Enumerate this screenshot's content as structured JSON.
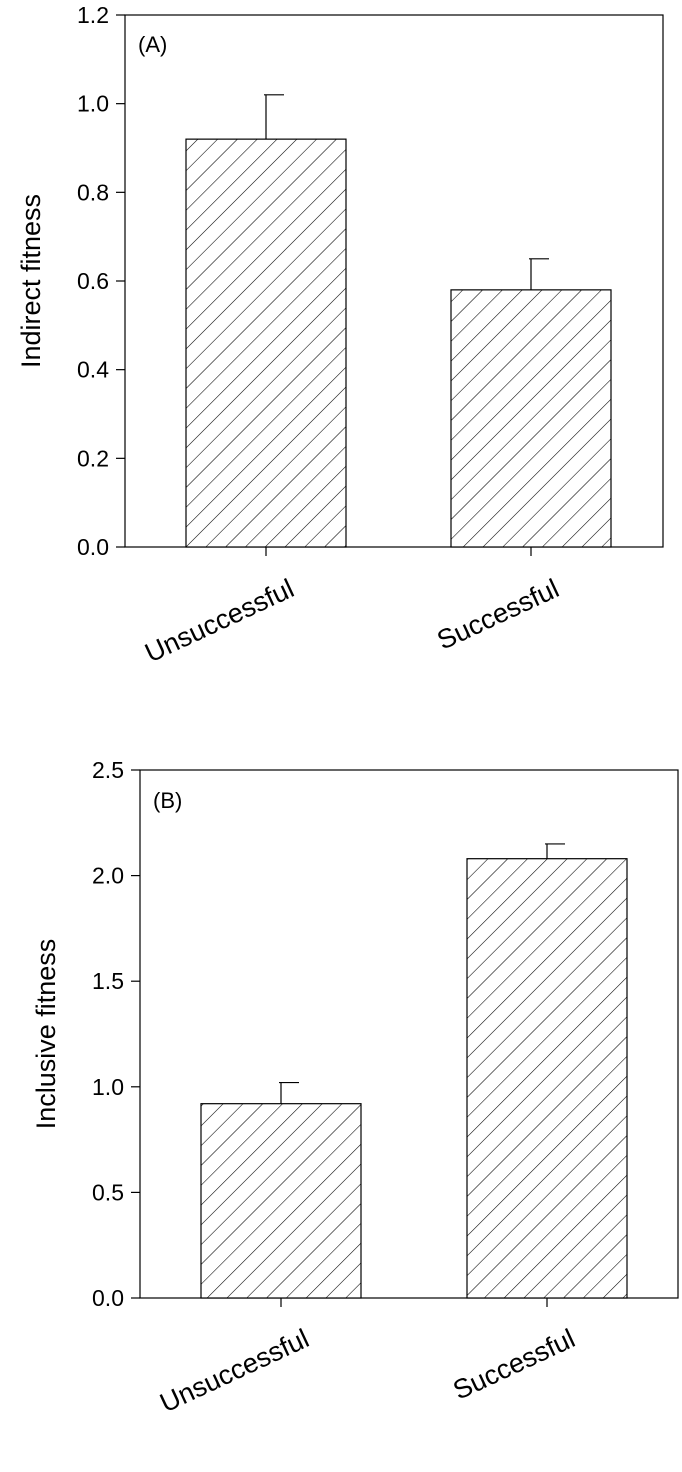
{
  "chart_data": [
    {
      "type": "bar",
      "panel_label": "(A)",
      "ylabel": "Indirect fitness",
      "xlabel": "",
      "categories": [
        "Unsuccessful",
        "Successful"
      ],
      "values": [
        0.92,
        0.58
      ],
      "error_upper": [
        1.02,
        0.65
      ],
      "ylim": [
        0,
        1.2
      ],
      "yticks": [
        "0.0",
        "0.2",
        "0.4",
        "0.6",
        "0.8",
        "1.0",
        "1.2"
      ],
      "bar_fill": "diagonal hatch",
      "grid": false
    },
    {
      "type": "bar",
      "panel_label": "(B)",
      "ylabel": "Inclusive fitness",
      "xlabel": "",
      "categories": [
        "Unsuccessful",
        "Successful"
      ],
      "values": [
        0.92,
        2.08
      ],
      "error_upper": [
        1.02,
        2.15
      ],
      "ylim": [
        0,
        2.5
      ],
      "yticks": [
        "0.0",
        "0.5",
        "1.0",
        "1.5",
        "2.0",
        "2.5"
      ],
      "bar_fill": "diagonal hatch",
      "grid": false
    }
  ]
}
